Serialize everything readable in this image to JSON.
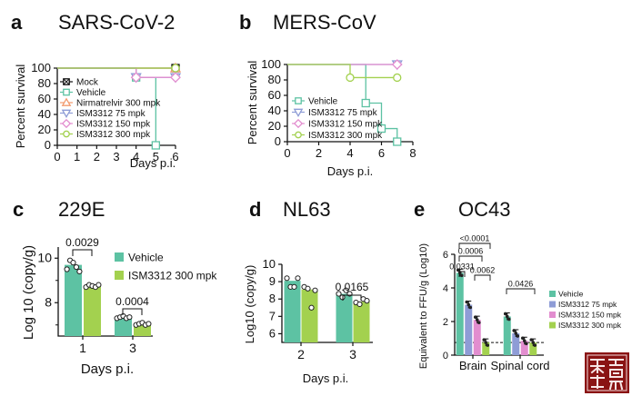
{
  "panels": {
    "a": {
      "label": "a",
      "title": "SARS-CoV-2"
    },
    "b": {
      "label": "b",
      "title": "MERS-CoV"
    },
    "c": {
      "label": "c",
      "title": "229E"
    },
    "d": {
      "label": "d",
      "title": "NL63"
    },
    "e": {
      "label": "e",
      "title": "OC43"
    }
  },
  "colors": {
    "mock": "#111111",
    "vehicle": "#5dc2a3",
    "nirmatrelvir": "#f29a6e",
    "ism75": "#8e9cd6",
    "ism150": "#e28dcf",
    "ism300": "#a3d14f"
  },
  "chart_data": [
    {
      "id": "a",
      "type": "line",
      "step": true,
      "title": "SARS-CoV-2",
      "xlabel": "Days p.i.",
      "ylabel": "Percent survival",
      "xlim": [
        0,
        6
      ],
      "ylim": [
        0,
        100
      ],
      "xticks": [
        "0",
        "1",
        "2",
        "3",
        "4",
        "5",
        "6"
      ],
      "yticks": [
        "0",
        "20",
        "40",
        "60",
        "80",
        "100"
      ],
      "series": [
        {
          "name": "Mock",
          "marker": "square-x",
          "color": "#111111",
          "x": [
            0,
            6
          ],
          "y": [
            100,
            100
          ]
        },
        {
          "name": "Vehicle",
          "marker": "square",
          "color": "#5dc2a3",
          "x": [
            0,
            4,
            5
          ],
          "y": [
            100,
            88,
            0
          ]
        },
        {
          "name": "Nirmatrelvir 300 mpk",
          "marker": "triangle-up",
          "color": "#f29a6e",
          "x": [
            0,
            6
          ],
          "y": [
            100,
            100
          ]
        },
        {
          "name": "ISM3312 75 mpk",
          "marker": "triangle-down",
          "color": "#8e9cd6",
          "x": [
            0,
            4,
            6
          ],
          "y": [
            100,
            88,
            88
          ]
        },
        {
          "name": "ISM3312 150 mpk",
          "marker": "diamond",
          "color": "#e28dcf",
          "x": [
            0,
            4,
            6
          ],
          "y": [
            100,
            88,
            88
          ]
        },
        {
          "name": "ISM3312 300 mpk",
          "marker": "circle",
          "color": "#a3d14f",
          "x": [
            0,
            6
          ],
          "y": [
            100,
            100
          ]
        }
      ]
    },
    {
      "id": "b",
      "type": "line",
      "step": true,
      "title": "MERS-CoV",
      "xlabel": "Days p.i.",
      "ylabel": "Percent survival",
      "xlim": [
        0,
        8
      ],
      "ylim": [
        0,
        100
      ],
      "xticks": [
        "0",
        "2",
        "4",
        "6",
        "8"
      ],
      "yticks": [
        "0",
        "20",
        "40",
        "60",
        "80",
        "100"
      ],
      "series": [
        {
          "name": "Vehicle",
          "marker": "square",
          "color": "#5dc2a3",
          "x": [
            0,
            5,
            6,
            7
          ],
          "y": [
            100,
            50,
            17,
            0
          ]
        },
        {
          "name": "ISM3312 75 mpk",
          "marker": "triangle-down",
          "color": "#8e9cd6",
          "x": [
            0,
            7
          ],
          "y": [
            100,
            100
          ]
        },
        {
          "name": "ISM3312 150 mpk",
          "marker": "diamond",
          "color": "#e28dcf",
          "x": [
            0,
            7
          ],
          "y": [
            100,
            100
          ]
        },
        {
          "name": "ISM3312 300 mpk",
          "marker": "circle",
          "color": "#a3d14f",
          "x": [
            0,
            4,
            7
          ],
          "y": [
            100,
            83,
            83
          ]
        }
      ]
    },
    {
      "id": "c",
      "type": "bar",
      "title": "229E",
      "xlabel": "Days p.i.",
      "ylabel": "Log 10 (copy/g)",
      "ylim": [
        6.5,
        10.5
      ],
      "categories": [
        "1",
        "3"
      ],
      "yticks": [
        "8",
        "10"
      ],
      "series": [
        {
          "name": "Vehicle",
          "color": "#5dc2a3",
          "values": [
            9.7,
            7.35
          ],
          "points": [
            [
              9.5,
              9.9,
              9.8,
              9.6,
              9.4
            ],
            [
              7.3,
              7.35,
              7.4,
              7.3,
              7.35
            ]
          ]
        },
        {
          "name": "ISM3312 300 mpk",
          "color": "#a3d14f",
          "values": [
            8.75,
            7.05
          ],
          "points": [
            [
              8.7,
              8.8,
              8.75,
              8.7,
              8.8
            ],
            [
              7.0,
              7.05,
              7.1,
              7.0,
              7.05
            ]
          ]
        }
      ],
      "annotations": [
        "0.0029",
        "0.0004"
      ]
    },
    {
      "id": "d",
      "type": "bar",
      "title": "NL63",
      "xlabel": "Days p.i.",
      "ylabel": "Log10 (copy/g)",
      "ylim": [
        5.5,
        10
      ],
      "categories": [
        "2",
        "3"
      ],
      "yticks": [
        "6",
        "7",
        "8",
        "9",
        "10"
      ],
      "series": [
        {
          "name": "Vehicle",
          "color": "#5dc2a3",
          "values": [
            9.05,
            8.3
          ],
          "points": [
            [
              9.2,
              8.7,
              8.7,
              9.2
            ],
            [
              8.3,
              8.1,
              8.5,
              8.3
            ]
          ]
        },
        {
          "name": "ISM3312 300 mpk",
          "color": "#a3d14f",
          "values": [
            8.55,
            7.85
          ],
          "points": [
            [
              8.7,
              8.6,
              7.5,
              8.5
            ],
            [
              7.8,
              7.7,
              8.0,
              7.9
            ]
          ]
        }
      ],
      "annotations": [
        "0.0165"
      ]
    },
    {
      "id": "e",
      "type": "bar",
      "title": "OC43",
      "xlabel": "",
      "ylabel": "Equivalent to FFU/g (Log10)",
      "ylim": [
        0,
        6
      ],
      "categories": [
        "Brain",
        "Spinal cord"
      ],
      "yticks": [
        "0",
        "2",
        "4",
        "6"
      ],
      "limit_of_detection": 0.75,
      "series": [
        {
          "name": "Vehicle",
          "color": "#5dc2a3",
          "values": [
            4.9,
            2.3
          ]
        },
        {
          "name": "ISM3312 75 mpk",
          "color": "#8e9cd6",
          "values": [
            3.0,
            1.3
          ]
        },
        {
          "name": "ISM3312 150 mpk",
          "color": "#e28dcf",
          "values": [
            2.1,
            0.85
          ]
        },
        {
          "name": "ISM3312 300 mpk",
          "color": "#a3d14f",
          "values": [
            0.75,
            0.75
          ]
        }
      ],
      "annotations": [
        "<0.0001",
        "0.0006",
        "0.0331",
        "0.0062",
        "0.0426"
      ]
    }
  ]
}
